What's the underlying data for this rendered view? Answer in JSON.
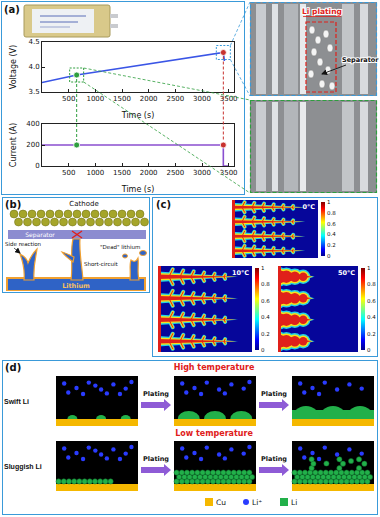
{
  "panel_labels": {
    "a": "(a)",
    "b": "(b)",
    "c": "(c)",
    "d": "(d)"
  },
  "chart_data": [
    {
      "type": "line",
      "x_label": "Time (s)",
      "y_label": "Voltage (V)",
      "xlim": [
        0,
        3600
      ],
      "xticks": [
        500,
        1000,
        1500,
        2000,
        2500,
        3000,
        3500
      ],
      "ylim": [
        3.5,
        4.5
      ],
      "yticks": [
        3.5,
        {
          "value": 4,
          "label": "4.0"
        },
        4.5
      ],
      "grid": false,
      "series": [
        {
          "type": "line",
          "line_style": "solid",
          "color": "#3a55e6",
          "x": [
            0,
            650,
            3400,
            3420
          ],
          "values": [
            3.69,
            3.84,
            4.29,
            4.12
          ]
        },
        {
          "type": "scatter",
          "marker": "circle",
          "colors": [
            "#2e9e3e",
            "#c8322f"
          ],
          "x": [
            650,
            3400
          ],
          "values": [
            3.84,
            4.29
          ]
        }
      ]
    },
    {
      "type": "line",
      "x_label": "Time (s)",
      "y_label": "Current (A)",
      "xlim": [
        0,
        3600
      ],
      "xticks": [
        500,
        1000,
        1500,
        2000,
        2500,
        3000,
        3500
      ],
      "ylim": [
        0,
        400
      ],
      "yticks": [
        0,
        200,
        400
      ],
      "grid": false,
      "series": [
        {
          "type": "line",
          "line_style": "solid",
          "color": "#8a4fd0",
          "x": [
            0,
            650,
            3400,
            3400,
            3500
          ],
          "values": [
            200,
            200,
            200,
            0,
            0
          ]
        },
        {
          "type": "scatter",
          "marker": "circle",
          "colors": [
            "#2e9e3e",
            "#c8322f"
          ],
          "x": [
            650,
            3400
          ],
          "values": [
            200,
            200
          ]
        }
      ]
    }
  ],
  "panel_a_photos": {
    "li_plating": "Li plating",
    "separator": "Separator"
  },
  "panel_b": {
    "cathode": "Cathode",
    "separator": "Separator",
    "side_reaction": "Side reaction",
    "short_circuit": "Short-circuit",
    "dead_lithium": "\"Dead\" lithium",
    "lithium": "Lithium"
  },
  "panel_c": {
    "simulations": [
      {
        "label": "0°C"
      },
      {
        "label": "10°C"
      },
      {
        "label": "50°C"
      }
    ],
    "colorbar": {
      "range": [
        0,
        1
      ],
      "ticks": [
        0,
        0.2,
        0.4,
        0.6,
        0.8,
        1
      ]
    }
  },
  "panel_d": {
    "rows": [
      {
        "title": "High temperature",
        "label": "Swift Li",
        "arrow": "Plating"
      },
      {
        "title": "Low temperature",
        "label": "Sluggish Li",
        "arrow": "Plating"
      }
    ],
    "legend": [
      {
        "name": "Cu",
        "color": "#f5b800"
      },
      {
        "name": "Li⁺",
        "color": "#2a3cff"
      },
      {
        "name": "Li",
        "color": "#22b04a"
      }
    ]
  }
}
